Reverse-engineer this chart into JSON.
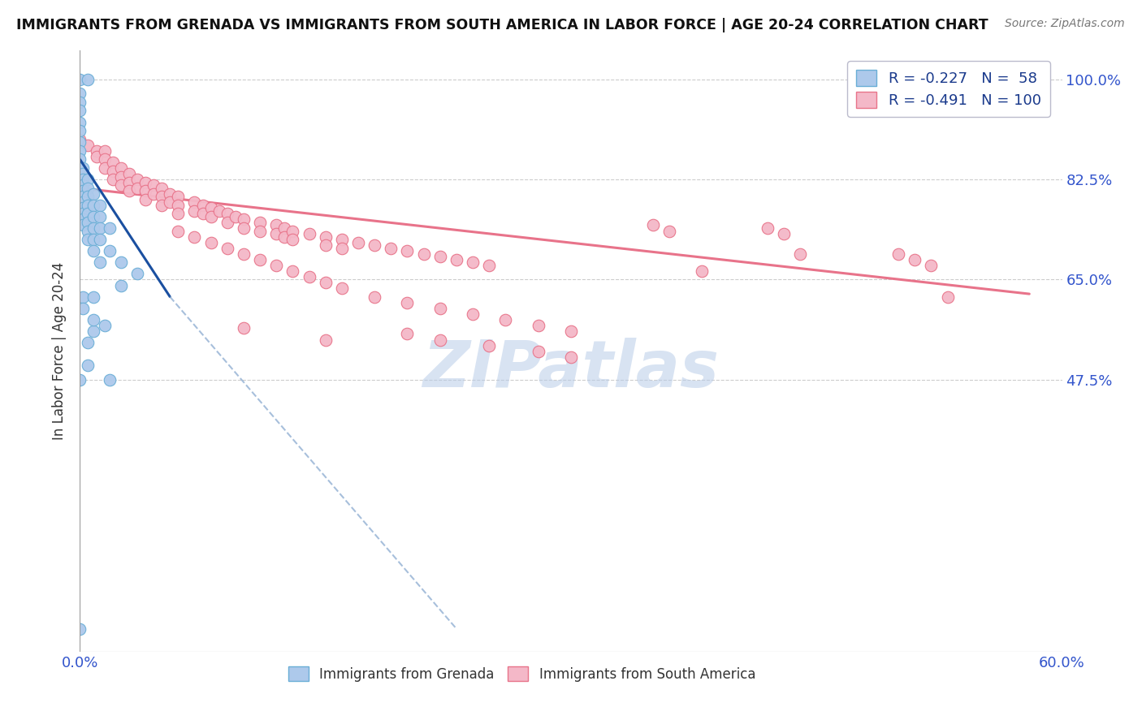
{
  "title": "IMMIGRANTS FROM GRENADA VS IMMIGRANTS FROM SOUTH AMERICA IN LABOR FORCE | AGE 20-24 CORRELATION CHART",
  "source": "Source: ZipAtlas.com",
  "ylabel": "In Labor Force | Age 20-24",
  "xlim": [
    0.0,
    0.6
  ],
  "ylim": [
    0.0,
    1.05
  ],
  "yticks": [
    0.475,
    0.65,
    0.825,
    1.0
  ],
  "ytick_labels": [
    "47.5%",
    "65.0%",
    "82.5%",
    "100.0%"
  ],
  "xticks": [
    0.0,
    0.1,
    0.2,
    0.3,
    0.4,
    0.5,
    0.6
  ],
  "xtick_labels": [
    "0.0%",
    "",
    "",
    "",
    "",
    "",
    "60.0%"
  ],
  "grenada_R": -0.227,
  "grenada_N": 58,
  "sa_R": -0.491,
  "sa_N": 100,
  "grenada_color": "#adc9eb",
  "grenada_edge": "#6aaed6",
  "sa_color": "#f4b8c8",
  "sa_edge": "#e8748a",
  "trendline_grenada_solid_color": "#1a4fa0",
  "trendline_grenada_dash_color": "#8aaad0",
  "trendline_sa_color": "#e8738a",
  "background_color": "#ffffff",
  "watermark": "ZIPatlas",
  "watermark_color": "#b8cce8",
  "grenada_trendline": [
    [
      0.0,
      0.86
    ],
    [
      0.055,
      0.62
    ]
  ],
  "grenada_trendline_ext": [
    [
      0.055,
      0.62
    ],
    [
      0.23,
      0.04
    ]
  ],
  "sa_trendline": [
    [
      0.0,
      0.81
    ],
    [
      0.58,
      0.625
    ]
  ],
  "grenada_points": [
    [
      0.0,
      1.0
    ],
    [
      0.005,
      1.0
    ],
    [
      0.0,
      0.975
    ],
    [
      0.0,
      0.96
    ],
    [
      0.0,
      0.945
    ],
    [
      0.0,
      0.925
    ],
    [
      0.0,
      0.91
    ],
    [
      0.0,
      0.89
    ],
    [
      0.0,
      0.875
    ],
    [
      0.0,
      0.86
    ],
    [
      0.0,
      0.845
    ],
    [
      0.0,
      0.835
    ],
    [
      0.002,
      0.845
    ],
    [
      0.002,
      0.835
    ],
    [
      0.002,
      0.825
    ],
    [
      0.002,
      0.815
    ],
    [
      0.002,
      0.805
    ],
    [
      0.002,
      0.795
    ],
    [
      0.002,
      0.785
    ],
    [
      0.002,
      0.775
    ],
    [
      0.002,
      0.765
    ],
    [
      0.002,
      0.755
    ],
    [
      0.002,
      0.745
    ],
    [
      0.005,
      0.825
    ],
    [
      0.005,
      0.81
    ],
    [
      0.005,
      0.795
    ],
    [
      0.005,
      0.78
    ],
    [
      0.005,
      0.765
    ],
    [
      0.005,
      0.75
    ],
    [
      0.005,
      0.735
    ],
    [
      0.005,
      0.72
    ],
    [
      0.008,
      0.8
    ],
    [
      0.008,
      0.78
    ],
    [
      0.008,
      0.76
    ],
    [
      0.008,
      0.74
    ],
    [
      0.008,
      0.72
    ],
    [
      0.008,
      0.7
    ],
    [
      0.012,
      0.78
    ],
    [
      0.012,
      0.76
    ],
    [
      0.012,
      0.74
    ],
    [
      0.012,
      0.72
    ],
    [
      0.012,
      0.68
    ],
    [
      0.018,
      0.74
    ],
    [
      0.018,
      0.7
    ],
    [
      0.025,
      0.68
    ],
    [
      0.025,
      0.64
    ],
    [
      0.035,
      0.66
    ],
    [
      0.005,
      0.54
    ],
    [
      0.005,
      0.5
    ],
    [
      0.008,
      0.56
    ],
    [
      0.015,
      0.57
    ],
    [
      0.0,
      0.475
    ],
    [
      0.018,
      0.475
    ],
    [
      0.0,
      0.04
    ],
    [
      0.002,
      0.62
    ],
    [
      0.002,
      0.6
    ],
    [
      0.008,
      0.62
    ],
    [
      0.008,
      0.58
    ]
  ],
  "sa_points": [
    [
      0.0,
      0.895
    ],
    [
      0.005,
      0.885
    ],
    [
      0.01,
      0.875
    ],
    [
      0.01,
      0.865
    ],
    [
      0.015,
      0.875
    ],
    [
      0.015,
      0.86
    ],
    [
      0.015,
      0.845
    ],
    [
      0.02,
      0.855
    ],
    [
      0.02,
      0.84
    ],
    [
      0.02,
      0.825
    ],
    [
      0.025,
      0.845
    ],
    [
      0.025,
      0.83
    ],
    [
      0.025,
      0.815
    ],
    [
      0.03,
      0.835
    ],
    [
      0.03,
      0.82
    ],
    [
      0.03,
      0.805
    ],
    [
      0.035,
      0.825
    ],
    [
      0.035,
      0.81
    ],
    [
      0.04,
      0.82
    ],
    [
      0.04,
      0.805
    ],
    [
      0.04,
      0.79
    ],
    [
      0.045,
      0.815
    ],
    [
      0.045,
      0.8
    ],
    [
      0.05,
      0.81
    ],
    [
      0.05,
      0.795
    ],
    [
      0.05,
      0.78
    ],
    [
      0.055,
      0.8
    ],
    [
      0.055,
      0.785
    ],
    [
      0.06,
      0.795
    ],
    [
      0.06,
      0.78
    ],
    [
      0.06,
      0.765
    ],
    [
      0.07,
      0.785
    ],
    [
      0.07,
      0.77
    ],
    [
      0.075,
      0.78
    ],
    [
      0.075,
      0.765
    ],
    [
      0.08,
      0.775
    ],
    [
      0.08,
      0.76
    ],
    [
      0.085,
      0.77
    ],
    [
      0.09,
      0.765
    ],
    [
      0.09,
      0.75
    ],
    [
      0.095,
      0.76
    ],
    [
      0.1,
      0.755
    ],
    [
      0.1,
      0.74
    ],
    [
      0.11,
      0.75
    ],
    [
      0.11,
      0.735
    ],
    [
      0.12,
      0.745
    ],
    [
      0.12,
      0.73
    ],
    [
      0.125,
      0.74
    ],
    [
      0.125,
      0.725
    ],
    [
      0.13,
      0.735
    ],
    [
      0.13,
      0.72
    ],
    [
      0.14,
      0.73
    ],
    [
      0.15,
      0.725
    ],
    [
      0.15,
      0.71
    ],
    [
      0.16,
      0.72
    ],
    [
      0.16,
      0.705
    ],
    [
      0.17,
      0.715
    ],
    [
      0.18,
      0.71
    ],
    [
      0.19,
      0.705
    ],
    [
      0.2,
      0.7
    ],
    [
      0.21,
      0.695
    ],
    [
      0.22,
      0.69
    ],
    [
      0.23,
      0.685
    ],
    [
      0.24,
      0.68
    ],
    [
      0.25,
      0.675
    ],
    [
      0.06,
      0.735
    ],
    [
      0.07,
      0.725
    ],
    [
      0.08,
      0.715
    ],
    [
      0.09,
      0.705
    ],
    [
      0.1,
      0.695
    ],
    [
      0.11,
      0.685
    ],
    [
      0.12,
      0.675
    ],
    [
      0.13,
      0.665
    ],
    [
      0.14,
      0.655
    ],
    [
      0.15,
      0.645
    ],
    [
      0.16,
      0.635
    ],
    [
      0.18,
      0.62
    ],
    [
      0.2,
      0.61
    ],
    [
      0.22,
      0.6
    ],
    [
      0.24,
      0.59
    ],
    [
      0.26,
      0.58
    ],
    [
      0.28,
      0.57
    ],
    [
      0.3,
      0.56
    ],
    [
      0.35,
      0.745
    ],
    [
      0.36,
      0.735
    ],
    [
      0.42,
      0.74
    ],
    [
      0.43,
      0.73
    ],
    [
      0.44,
      0.695
    ],
    [
      0.5,
      0.695
    ],
    [
      0.51,
      0.685
    ],
    [
      0.52,
      0.675
    ],
    [
      0.53,
      0.62
    ],
    [
      0.38,
      0.665
    ],
    [
      0.2,
      0.555
    ],
    [
      0.22,
      0.545
    ],
    [
      0.25,
      0.535
    ],
    [
      0.15,
      0.545
    ],
    [
      0.1,
      0.565
    ],
    [
      0.28,
      0.525
    ],
    [
      0.3,
      0.515
    ]
  ]
}
